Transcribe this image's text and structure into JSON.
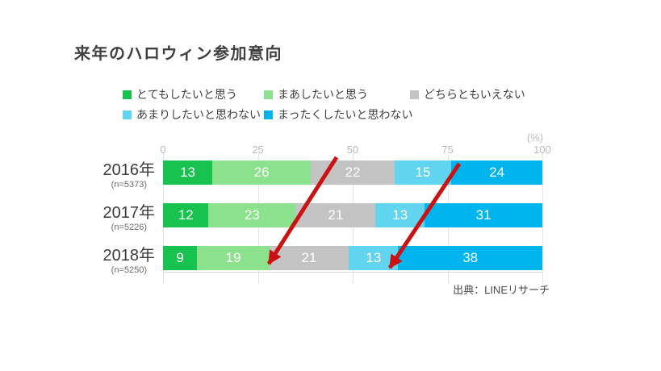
{
  "slide": {
    "title": "来年のハロウィン参加意向",
    "source": "出典：LINEリサーチ"
  },
  "chart_data": {
    "type": "bar",
    "subtype": "horizontal-stacked",
    "title": "来年のハロウィン参加意向",
    "unit_label": "(%)",
    "categories": [
      "2016年",
      "2017年",
      "2018年"
    ],
    "category_notes": [
      "(n=5373)",
      "(n=5226)",
      "(n=5250)"
    ],
    "series": [
      {
        "name": "とてもしたいと思う",
        "color": "#17c24f",
        "values": [
          13,
          12,
          9
        ]
      },
      {
        "name": "まあしたいと思う",
        "color": "#8ce18c",
        "values": [
          26,
          23,
          19
        ]
      },
      {
        "name": "どちらともいえない",
        "color": "#c3c3c3",
        "values": [
          22,
          21,
          21
        ]
      },
      {
        "name": "あまりしたいと思わない",
        "color": "#61d5f0",
        "values": [
          15,
          13,
          13
        ]
      },
      {
        "name": "まったくしたいと思わない",
        "color": "#00b4ee",
        "values": [
          24,
          31,
          38
        ]
      }
    ],
    "xlim": [
      0,
      100
    ],
    "x_ticks": [
      0,
      25,
      50,
      75,
      100
    ],
    "grid": true,
    "legend_position": "top-left",
    "value_labels": "inside-white"
  },
  "annotations": {
    "arrow_color": "#cb1111",
    "arrows": [
      {
        "from": [
          417,
          195
        ],
        "to": [
          333,
          327
        ]
      },
      {
        "from": [
          569,
          203
        ],
        "to": [
          483,
          332
        ]
      }
    ]
  }
}
